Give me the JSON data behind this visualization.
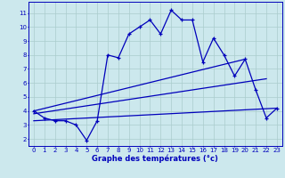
{
  "xlabel": "Graphe des températures (°c)",
  "bg_color": "#cce8ed",
  "line_color": "#0000bb",
  "grid_color": "#aacccc",
  "xlim": [
    -0.5,
    23.5
  ],
  "ylim": [
    1.5,
    11.8
  ],
  "xticks": [
    0,
    1,
    2,
    3,
    4,
    5,
    6,
    7,
    8,
    9,
    10,
    11,
    12,
    13,
    14,
    15,
    16,
    17,
    18,
    19,
    20,
    21,
    22,
    23
  ],
  "yticks": [
    2,
    3,
    4,
    5,
    6,
    7,
    8,
    9,
    10,
    11
  ],
  "series1_x": [
    0,
    1,
    2,
    3,
    4,
    5,
    6,
    7,
    8,
    9,
    10,
    11,
    12,
    13,
    14,
    15,
    16,
    17,
    18,
    19,
    20,
    21,
    22,
    23
  ],
  "series1_y": [
    4.0,
    3.5,
    3.3,
    3.3,
    3.0,
    1.9,
    3.3,
    8.0,
    7.8,
    9.5,
    10.0,
    10.5,
    9.5,
    11.2,
    10.5,
    10.5,
    7.5,
    9.2,
    8.0,
    6.5,
    7.7,
    5.5,
    3.5,
    4.2
  ],
  "series2_x": [
    0,
    20
  ],
  "series2_y": [
    4.0,
    7.7
  ],
  "series3_x": [
    0,
    23
  ],
  "series3_y": [
    3.3,
    4.2
  ],
  "series4_x": [
    0,
    22
  ],
  "series4_y": [
    3.8,
    6.3
  ]
}
